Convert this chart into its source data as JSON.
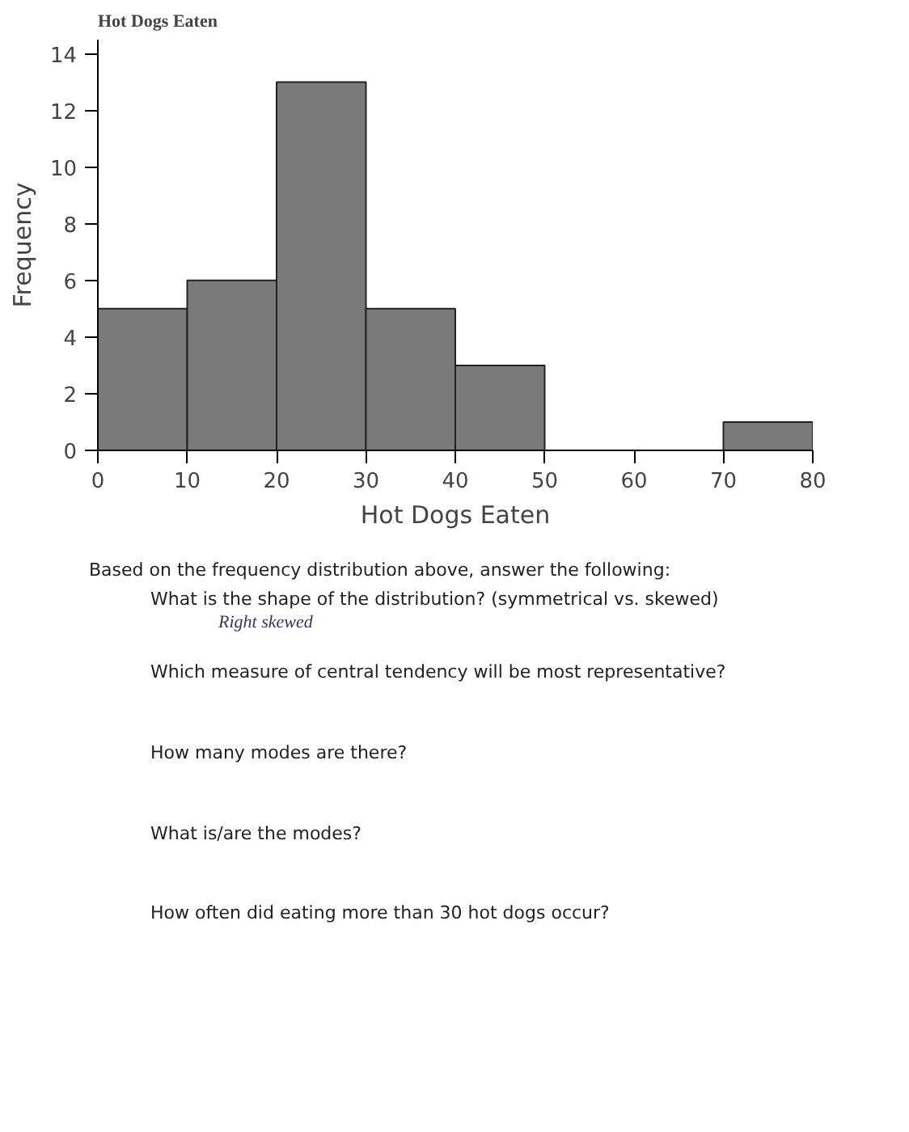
{
  "chart_data": {
    "type": "histogram",
    "title": "Hot Dogs Eaten",
    "xlabel": "Hot Dogs Eaten",
    "ylabel": "Frequency",
    "bins": [
      0,
      10,
      20,
      30,
      40,
      50,
      60,
      70,
      80
    ],
    "values": [
      5,
      6,
      13,
      5,
      3,
      0,
      0,
      1
    ],
    "color": "#7a7a7a",
    "xlim": [
      0,
      80
    ],
    "xticks": [
      0,
      10,
      20,
      30,
      40,
      50,
      60,
      70,
      80
    ],
    "ylim": [
      0,
      14.5
    ],
    "yticks": [
      0,
      2,
      4,
      6,
      8,
      10,
      12,
      14
    ],
    "grid": false,
    "annotations": [
      "Based on the frequency distribution above, answer the following:",
      "What is the shape of the distribution? (symmetrical vs. skewed)",
      "Right skewed",
      "Which measure of central tendency will be most representative?",
      "How many modes are there?",
      "What is/are the modes?",
      "How often did eating more than 30 hot dogs occur?"
    ]
  }
}
